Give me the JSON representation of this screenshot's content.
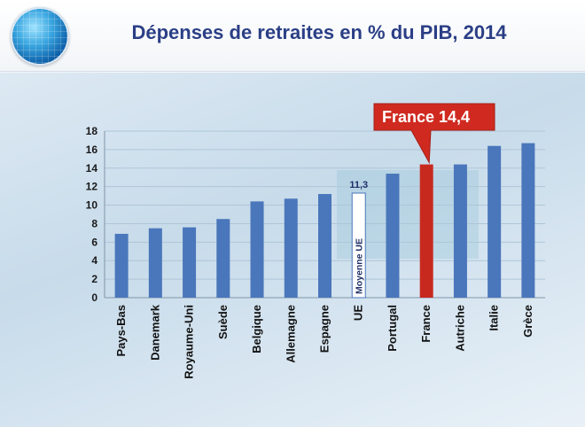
{
  "title": "Dépenses de retraites en % du PIB, 2014",
  "colors": {
    "title": "#2b3f86",
    "bar": "#4a76bb",
    "highlight": "#c8291f",
    "reference_bar": "#ffffff",
    "callout": "#d02a20"
  },
  "logo": "globe-icon",
  "chart_data": {
    "type": "bar",
    "title": "Dépenses de retraites en % du PIB, 2014",
    "categories": [
      "Pays-Bas",
      "Danemark",
      "Royaume-Uni",
      "Suède",
      "Belgique",
      "Allemagne",
      "Espagne",
      "UE",
      "Portugal",
      "France",
      "Autriche",
      "Italie",
      "Grèce"
    ],
    "values": [
      6.9,
      7.5,
      7.6,
      8.5,
      10.4,
      10.7,
      11.2,
      11.3,
      13.4,
      14.4,
      14.4,
      16.4,
      16.7
    ],
    "ylim": [
      0,
      18
    ],
    "yticks": [
      "0",
      "2",
      "4",
      "6",
      "8",
      "10",
      "12",
      "14",
      "16",
      "18"
    ],
    "grid": true,
    "highlight_index": 9,
    "reference_index": 7,
    "reference_value_label": "11,3",
    "reference_bar_label": "Moyenne UE",
    "callout_label": "France 14,4"
  }
}
